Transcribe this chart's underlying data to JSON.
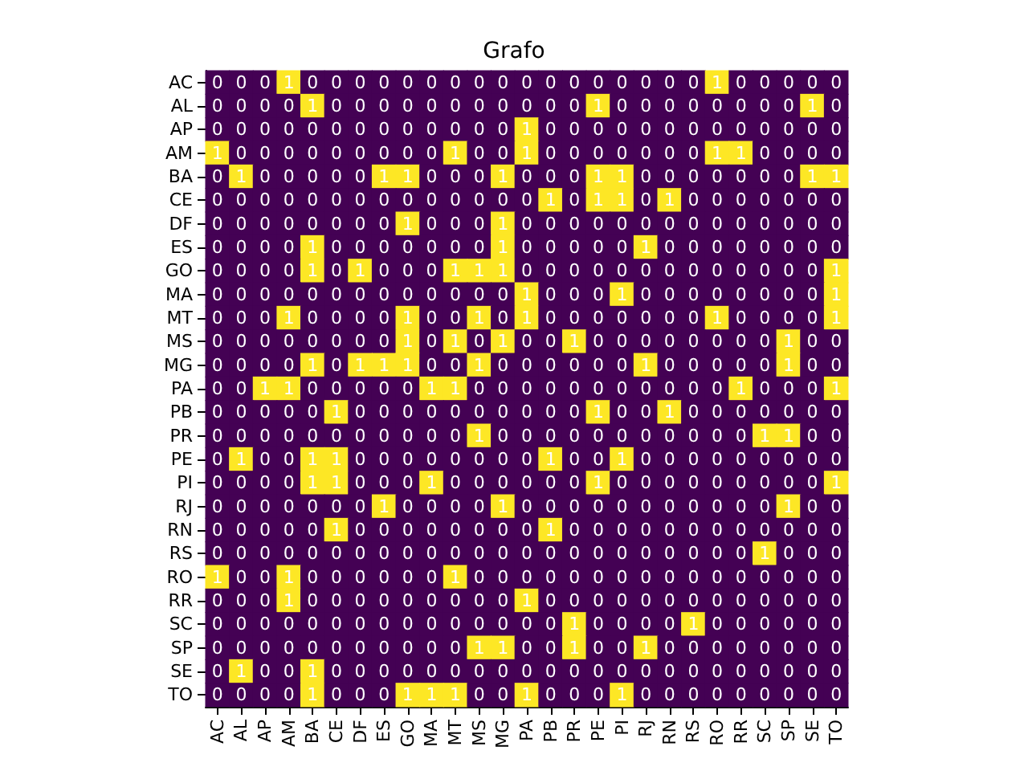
{
  "chart_data": {
    "type": "heatmap",
    "title": "Grafo",
    "categories": [
      "AC",
      "AL",
      "AP",
      "AM",
      "BA",
      "CE",
      "DF",
      "ES",
      "GO",
      "MA",
      "MT",
      "MS",
      "MG",
      "PA",
      "PB",
      "PR",
      "PE",
      "PI",
      "RJ",
      "RN",
      "RS",
      "RO",
      "RR",
      "SC",
      "SP",
      "SE",
      "TO"
    ],
    "y_categories": [
      "AC",
      "AL",
      "AP",
      "AM",
      "BA",
      "CE",
      "DF",
      "ES",
      "GO",
      "MA",
      "MT",
      "MS",
      "MG",
      "PA",
      "PB",
      "PR",
      "PE",
      "PI",
      "RJ",
      "RN",
      "RS",
      "RO",
      "RR",
      "SC",
      "SP",
      "SE",
      "TO"
    ],
    "cells": [
      [
        0,
        0,
        0,
        1,
        0,
        0,
        0,
        0,
        0,
        0,
        0,
        0,
        0,
        0,
        0,
        0,
        0,
        0,
        0,
        0,
        0,
        1,
        0,
        0,
        0,
        0,
        0
      ],
      [
        0,
        0,
        0,
        0,
        1,
        0,
        0,
        0,
        0,
        0,
        0,
        0,
        0,
        0,
        0,
        0,
        1,
        0,
        0,
        0,
        0,
        0,
        0,
        0,
        0,
        1,
        0
      ],
      [
        0,
        0,
        0,
        0,
        0,
        0,
        0,
        0,
        0,
        0,
        0,
        0,
        0,
        1,
        0,
        0,
        0,
        0,
        0,
        0,
        0,
        0,
        0,
        0,
        0,
        0,
        0
      ],
      [
        1,
        0,
        0,
        0,
        0,
        0,
        0,
        0,
        0,
        0,
        1,
        0,
        0,
        1,
        0,
        0,
        0,
        0,
        0,
        0,
        0,
        1,
        1,
        0,
        0,
        0,
        0
      ],
      [
        0,
        1,
        0,
        0,
        0,
        0,
        0,
        1,
        1,
        0,
        0,
        0,
        1,
        0,
        0,
        0,
        1,
        1,
        0,
        0,
        0,
        0,
        0,
        0,
        0,
        1,
        1
      ],
      [
        0,
        0,
        0,
        0,
        0,
        0,
        0,
        0,
        0,
        0,
        0,
        0,
        0,
        0,
        1,
        0,
        1,
        1,
        0,
        1,
        0,
        0,
        0,
        0,
        0,
        0,
        0
      ],
      [
        0,
        0,
        0,
        0,
        0,
        0,
        0,
        0,
        1,
        0,
        0,
        0,
        1,
        0,
        0,
        0,
        0,
        0,
        0,
        0,
        0,
        0,
        0,
        0,
        0,
        0,
        0
      ],
      [
        0,
        0,
        0,
        0,
        1,
        0,
        0,
        0,
        0,
        0,
        0,
        0,
        1,
        0,
        0,
        0,
        0,
        0,
        1,
        0,
        0,
        0,
        0,
        0,
        0,
        0,
        0
      ],
      [
        0,
        0,
        0,
        0,
        1,
        0,
        1,
        0,
        0,
        0,
        1,
        1,
        1,
        0,
        0,
        0,
        0,
        0,
        0,
        0,
        0,
        0,
        0,
        0,
        0,
        0,
        1
      ],
      [
        0,
        0,
        0,
        0,
        0,
        0,
        0,
        0,
        0,
        0,
        0,
        0,
        0,
        1,
        0,
        0,
        0,
        1,
        0,
        0,
        0,
        0,
        0,
        0,
        0,
        0,
        1
      ],
      [
        0,
        0,
        0,
        1,
        0,
        0,
        0,
        0,
        1,
        0,
        0,
        1,
        0,
        1,
        0,
        0,
        0,
        0,
        0,
        0,
        0,
        1,
        0,
        0,
        0,
        0,
        1
      ],
      [
        0,
        0,
        0,
        0,
        0,
        0,
        0,
        0,
        1,
        0,
        1,
        0,
        1,
        0,
        0,
        1,
        0,
        0,
        0,
        0,
        0,
        0,
        0,
        0,
        1,
        0,
        0
      ],
      [
        0,
        0,
        0,
        0,
        1,
        0,
        1,
        1,
        1,
        0,
        0,
        1,
        0,
        0,
        0,
        0,
        0,
        0,
        1,
        0,
        0,
        0,
        0,
        0,
        1,
        0,
        0
      ],
      [
        0,
        0,
        1,
        1,
        0,
        0,
        0,
        0,
        0,
        1,
        1,
        0,
        0,
        0,
        0,
        0,
        0,
        0,
        0,
        0,
        0,
        0,
        1,
        0,
        0,
        0,
        1
      ],
      [
        0,
        0,
        0,
        0,
        0,
        1,
        0,
        0,
        0,
        0,
        0,
        0,
        0,
        0,
        0,
        0,
        1,
        0,
        0,
        1,
        0,
        0,
        0,
        0,
        0,
        0,
        0
      ],
      [
        0,
        0,
        0,
        0,
        0,
        0,
        0,
        0,
        0,
        0,
        0,
        1,
        0,
        0,
        0,
        0,
        0,
        0,
        0,
        0,
        0,
        0,
        0,
        1,
        1,
        0,
        0
      ],
      [
        0,
        1,
        0,
        0,
        1,
        1,
        0,
        0,
        0,
        0,
        0,
        0,
        0,
        0,
        1,
        0,
        0,
        1,
        0,
        0,
        0,
        0,
        0,
        0,
        0,
        0,
        0
      ],
      [
        0,
        0,
        0,
        0,
        1,
        1,
        0,
        0,
        0,
        1,
        0,
        0,
        0,
        0,
        0,
        0,
        1,
        0,
        0,
        0,
        0,
        0,
        0,
        0,
        0,
        0,
        1
      ],
      [
        0,
        0,
        0,
        0,
        0,
        0,
        0,
        1,
        0,
        0,
        0,
        0,
        1,
        0,
        0,
        0,
        0,
        0,
        0,
        0,
        0,
        0,
        0,
        0,
        1,
        0,
        0
      ],
      [
        0,
        0,
        0,
        0,
        0,
        1,
        0,
        0,
        0,
        0,
        0,
        0,
        0,
        0,
        1,
        0,
        0,
        0,
        0,
        0,
        0,
        0,
        0,
        0,
        0,
        0,
        0
      ],
      [
        0,
        0,
        0,
        0,
        0,
        0,
        0,
        0,
        0,
        0,
        0,
        0,
        0,
        0,
        0,
        0,
        0,
        0,
        0,
        0,
        0,
        0,
        0,
        1,
        0,
        0,
        0
      ],
      [
        1,
        0,
        0,
        1,
        0,
        0,
        0,
        0,
        0,
        0,
        1,
        0,
        0,
        0,
        0,
        0,
        0,
        0,
        0,
        0,
        0,
        0,
        0,
        0,
        0,
        0,
        0
      ],
      [
        0,
        0,
        0,
        1,
        0,
        0,
        0,
        0,
        0,
        0,
        0,
        0,
        0,
        1,
        0,
        0,
        0,
        0,
        0,
        0,
        0,
        0,
        0,
        0,
        0,
        0,
        0
      ],
      [
        0,
        0,
        0,
        0,
        0,
        0,
        0,
        0,
        0,
        0,
        0,
        0,
        0,
        0,
        0,
        1,
        0,
        0,
        0,
        0,
        1,
        0,
        0,
        0,
        0,
        0,
        0
      ],
      [
        0,
        0,
        0,
        0,
        0,
        0,
        0,
        0,
        0,
        0,
        0,
        1,
        1,
        0,
        0,
        1,
        0,
        0,
        1,
        0,
        0,
        0,
        0,
        0,
        0,
        0,
        0
      ],
      [
        0,
        1,
        0,
        0,
        1,
        0,
        0,
        0,
        0,
        0,
        0,
        0,
        0,
        0,
        0,
        0,
        0,
        0,
        0,
        0,
        0,
        0,
        0,
        0,
        0,
        0,
        0
      ],
      [
        0,
        0,
        0,
        0,
        1,
        0,
        0,
        0,
        1,
        1,
        1,
        0,
        0,
        1,
        0,
        0,
        0,
        1,
        0,
        0,
        0,
        0,
        0,
        0,
        0,
        0,
        0
      ]
    ],
    "colors": [
      "#440154",
      "#fde725"
    ],
    "data_labels": true
  }
}
